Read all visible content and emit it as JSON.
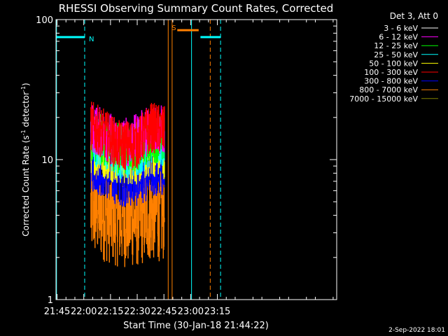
{
  "chart_data": {
    "type": "line",
    "title": "RHESSI Observing Summary Count Rates, Corrected",
    "xlabel": "Start Time (30-Jan-18 21:44:22)",
    "ylabel_main": "Corrected Count Rate (s",
    "ylabel_sup1": "-1",
    "ylabel_mid": " detector",
    "ylabel_sup2": "-1",
    "ylabel_end": ")",
    "y_scale": "log",
    "ylim": [
      1,
      100
    ],
    "y_ticks": [
      {
        "v": 1,
        "label": "1"
      },
      {
        "v": 10,
        "label": "10"
      },
      {
        "v": 100,
        "label": "100"
      }
    ],
    "xlim_min": [
      1304.4,
      1462
    ],
    "x_ticks": [
      {
        "v": 1305,
        "label": "21:45"
      },
      {
        "v": 1320,
        "label": "22:00"
      },
      {
        "v": 1335,
        "label": "22:15"
      },
      {
        "v": 1350,
        "label": "22:30"
      },
      {
        "v": 1365,
        "label": "22:45"
      },
      {
        "v": 1380,
        "label": "23:00"
      },
      {
        "v": 1395,
        "label": "23:15"
      }
    ],
    "data_range_min": [
      1323.8,
      1365.3
    ],
    "legend_header": "Det 3, Att 0",
    "series": [
      {
        "name": "3 - 6 keV",
        "color": "#ffffff",
        "levels": []
      },
      {
        "name": "6 - 12 keV",
        "color": "#ff00ff",
        "levels": [
          [
            1323.8,
            17
          ],
          [
            1340,
            13
          ],
          [
            1350,
            14
          ],
          [
            1358,
            17
          ],
          [
            1365.3,
            16
          ]
        ]
      },
      {
        "name": "12 - 25 keV",
        "color": "#00ff00",
        "levels": [
          [
            1323.8,
            15
          ],
          [
            1340,
            12
          ],
          [
            1350,
            12.5
          ],
          [
            1358,
            14.5
          ],
          [
            1365.3,
            14
          ]
        ]
      },
      {
        "name": "25 - 50 keV",
        "color": "#00ffff",
        "levels": [
          [
            1323.8,
            14
          ],
          [
            1340,
            11
          ],
          [
            1350,
            11.5
          ],
          [
            1358,
            13.5
          ],
          [
            1365.3,
            13
          ]
        ]
      },
      {
        "name": "50 - 100 keV",
        "color": "#ffff00",
        "levels": [
          [
            1323.8,
            12
          ],
          [
            1340,
            10
          ],
          [
            1350,
            10
          ],
          [
            1358,
            11.5
          ],
          [
            1365.3,
            11
          ]
        ]
      },
      {
        "name": "100 - 300 keV",
        "color": "#ff0000",
        "levels": [
          [
            1323.8,
            17.5
          ],
          [
            1340,
            12.5
          ],
          [
            1350,
            13
          ],
          [
            1358,
            17
          ],
          [
            1365.3,
            16
          ]
        ]
      },
      {
        "name": "300 - 800 keV",
        "color": "#0000ff",
        "levels": [
          [
            1323.8,
            9
          ],
          [
            1340,
            7
          ],
          [
            1350,
            7
          ],
          [
            1358,
            8
          ],
          [
            1365.3,
            8
          ]
        ]
      },
      {
        "name": "800 - 7000 keV",
        "color": "#ff8000",
        "levels": [
          [
            1323.8,
            4.5
          ],
          [
            1340,
            3.8
          ],
          [
            1350,
            3.8
          ],
          [
            1358,
            4.2
          ],
          [
            1365.3,
            4.2
          ]
        ]
      },
      {
        "name": "7000 - 15000 keV",
        "color": "#808000",
        "levels": []
      }
    ],
    "flags": [
      {
        "label": "N",
        "color": "#00ffff",
        "x0": 1304.4,
        "x1": 1320.5,
        "y": 75
      },
      {
        "label": "S",
        "color": "#ff8000",
        "x0": 1372.5,
        "x1": 1384.5,
        "y": 84
      },
      {
        "label": "",
        "color": "#00ffff",
        "x0": 1385.5,
        "x1": 1396.8,
        "y": 75
      }
    ],
    "markers": [
      {
        "x": 1304.7,
        "color": "#00ffff",
        "dashed": false
      },
      {
        "x": 1320.5,
        "color": "#00ffff",
        "dashed": true
      },
      {
        "x": 1367.4,
        "color": "#ff8000",
        "dashed": false
      },
      {
        "x": 1369.6,
        "color": "#ff8000",
        "dashed": false
      },
      {
        "x": 1380.5,
        "color": "#00ffff",
        "dashed": false
      },
      {
        "x": 1391.0,
        "color": "#ff8000",
        "dashed": true
      },
      {
        "x": 1396.8,
        "color": "#00ffff",
        "dashed": true
      }
    ],
    "grid": false,
    "legend_position": "top-right"
  },
  "footer": {
    "date": "2-Sep-2022 18:01"
  }
}
